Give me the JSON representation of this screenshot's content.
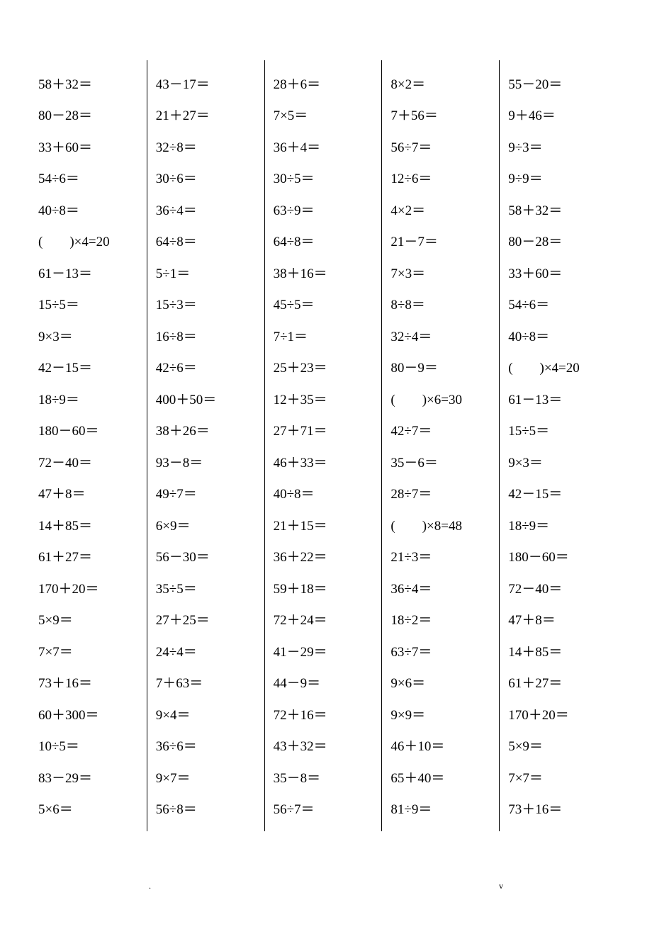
{
  "background_color": "#ffffff",
  "text_color": "#000000",
  "border_color": "#000000",
  "font_family": "Times New Roman, serif",
  "font_size_pt": 14,
  "columns": [
    {
      "problems": [
        "58＋32＝",
        "80－28＝",
        "33＋60＝",
        "54÷6＝",
        "40÷8＝",
        "(　　)×4=20",
        "61－13＝",
        "15÷5＝",
        "9×3＝",
        "42－15＝",
        "18÷9＝",
        "180－60＝",
        "72－40＝",
        "47＋8＝",
        "14＋85＝",
        "61＋27＝",
        "170＋20＝",
        "5×9＝",
        "7×7＝",
        "73＋16＝",
        "60＋300＝",
        "10÷5＝",
        "83－29＝",
        "5×6＝"
      ]
    },
    {
      "problems": [
        "43－17＝",
        "21＋27＝",
        "32÷8＝",
        "30÷6＝",
        "36÷4＝",
        "64÷8＝",
        "5÷1＝",
        "15÷3＝",
        "16÷8＝",
        "42÷6＝",
        "400＋50＝",
        "38＋26＝",
        "93－8＝",
        "49÷7＝",
        "6×9＝",
        "56－30＝",
        "35÷5＝",
        "27＋25＝",
        "24÷4＝",
        "7＋63＝",
        "9×4＝",
        "36÷6＝",
        "9×7＝",
        "56÷8＝"
      ]
    },
    {
      "problems": [
        "28＋6＝",
        "7×5＝",
        "36＋4＝",
        "30÷5＝",
        "63÷9＝",
        "64÷8＝",
        "38＋16＝",
        "45÷5＝",
        "7÷1＝",
        "25＋23＝",
        "12＋35＝",
        "27＋71＝",
        "46＋33＝",
        "40÷8＝",
        "21＋15＝",
        "36＋22＝",
        "59＋18＝",
        "72＋24＝",
        "41－29＝",
        "44－9＝",
        "72＋16＝",
        "43＋32＝",
        "35－8＝",
        "56÷7＝"
      ]
    },
    {
      "problems": [
        "8×2＝",
        "7＋56＝",
        "56÷7＝",
        "12÷6＝",
        "4×2＝",
        "21－7＝",
        "7×3＝",
        "8÷8＝",
        "32÷4＝",
        "80－9＝",
        "(　　)×6=30",
        "42÷7＝",
        "35－6＝",
        "28÷7＝",
        "(　　)×8=48",
        "21÷3＝",
        "36÷4＝",
        "18÷2＝",
        "63÷7＝",
        "9×6＝",
        "9×9＝",
        "46＋10＝",
        "65＋40＝",
        "81÷9＝"
      ]
    },
    {
      "problems": [
        "55－20＝",
        "9＋46＝",
        "9÷3＝",
        "9÷9＝",
        "58＋32＝",
        "80－28＝",
        "33＋60＝",
        "54÷6＝",
        "40÷8＝",
        "(　　)×4=20",
        "61－13＝",
        "15÷5＝",
        "9×3＝",
        "42－15＝",
        "18÷9＝",
        "180－60＝",
        "72－40＝",
        "47＋8＝",
        "14＋85＝",
        "61＋27＝",
        "170＋20＝",
        "5×9＝",
        "7×7＝",
        "73＋16＝"
      ]
    }
  ],
  "footer": {
    "left": ".",
    "right": "v"
  }
}
